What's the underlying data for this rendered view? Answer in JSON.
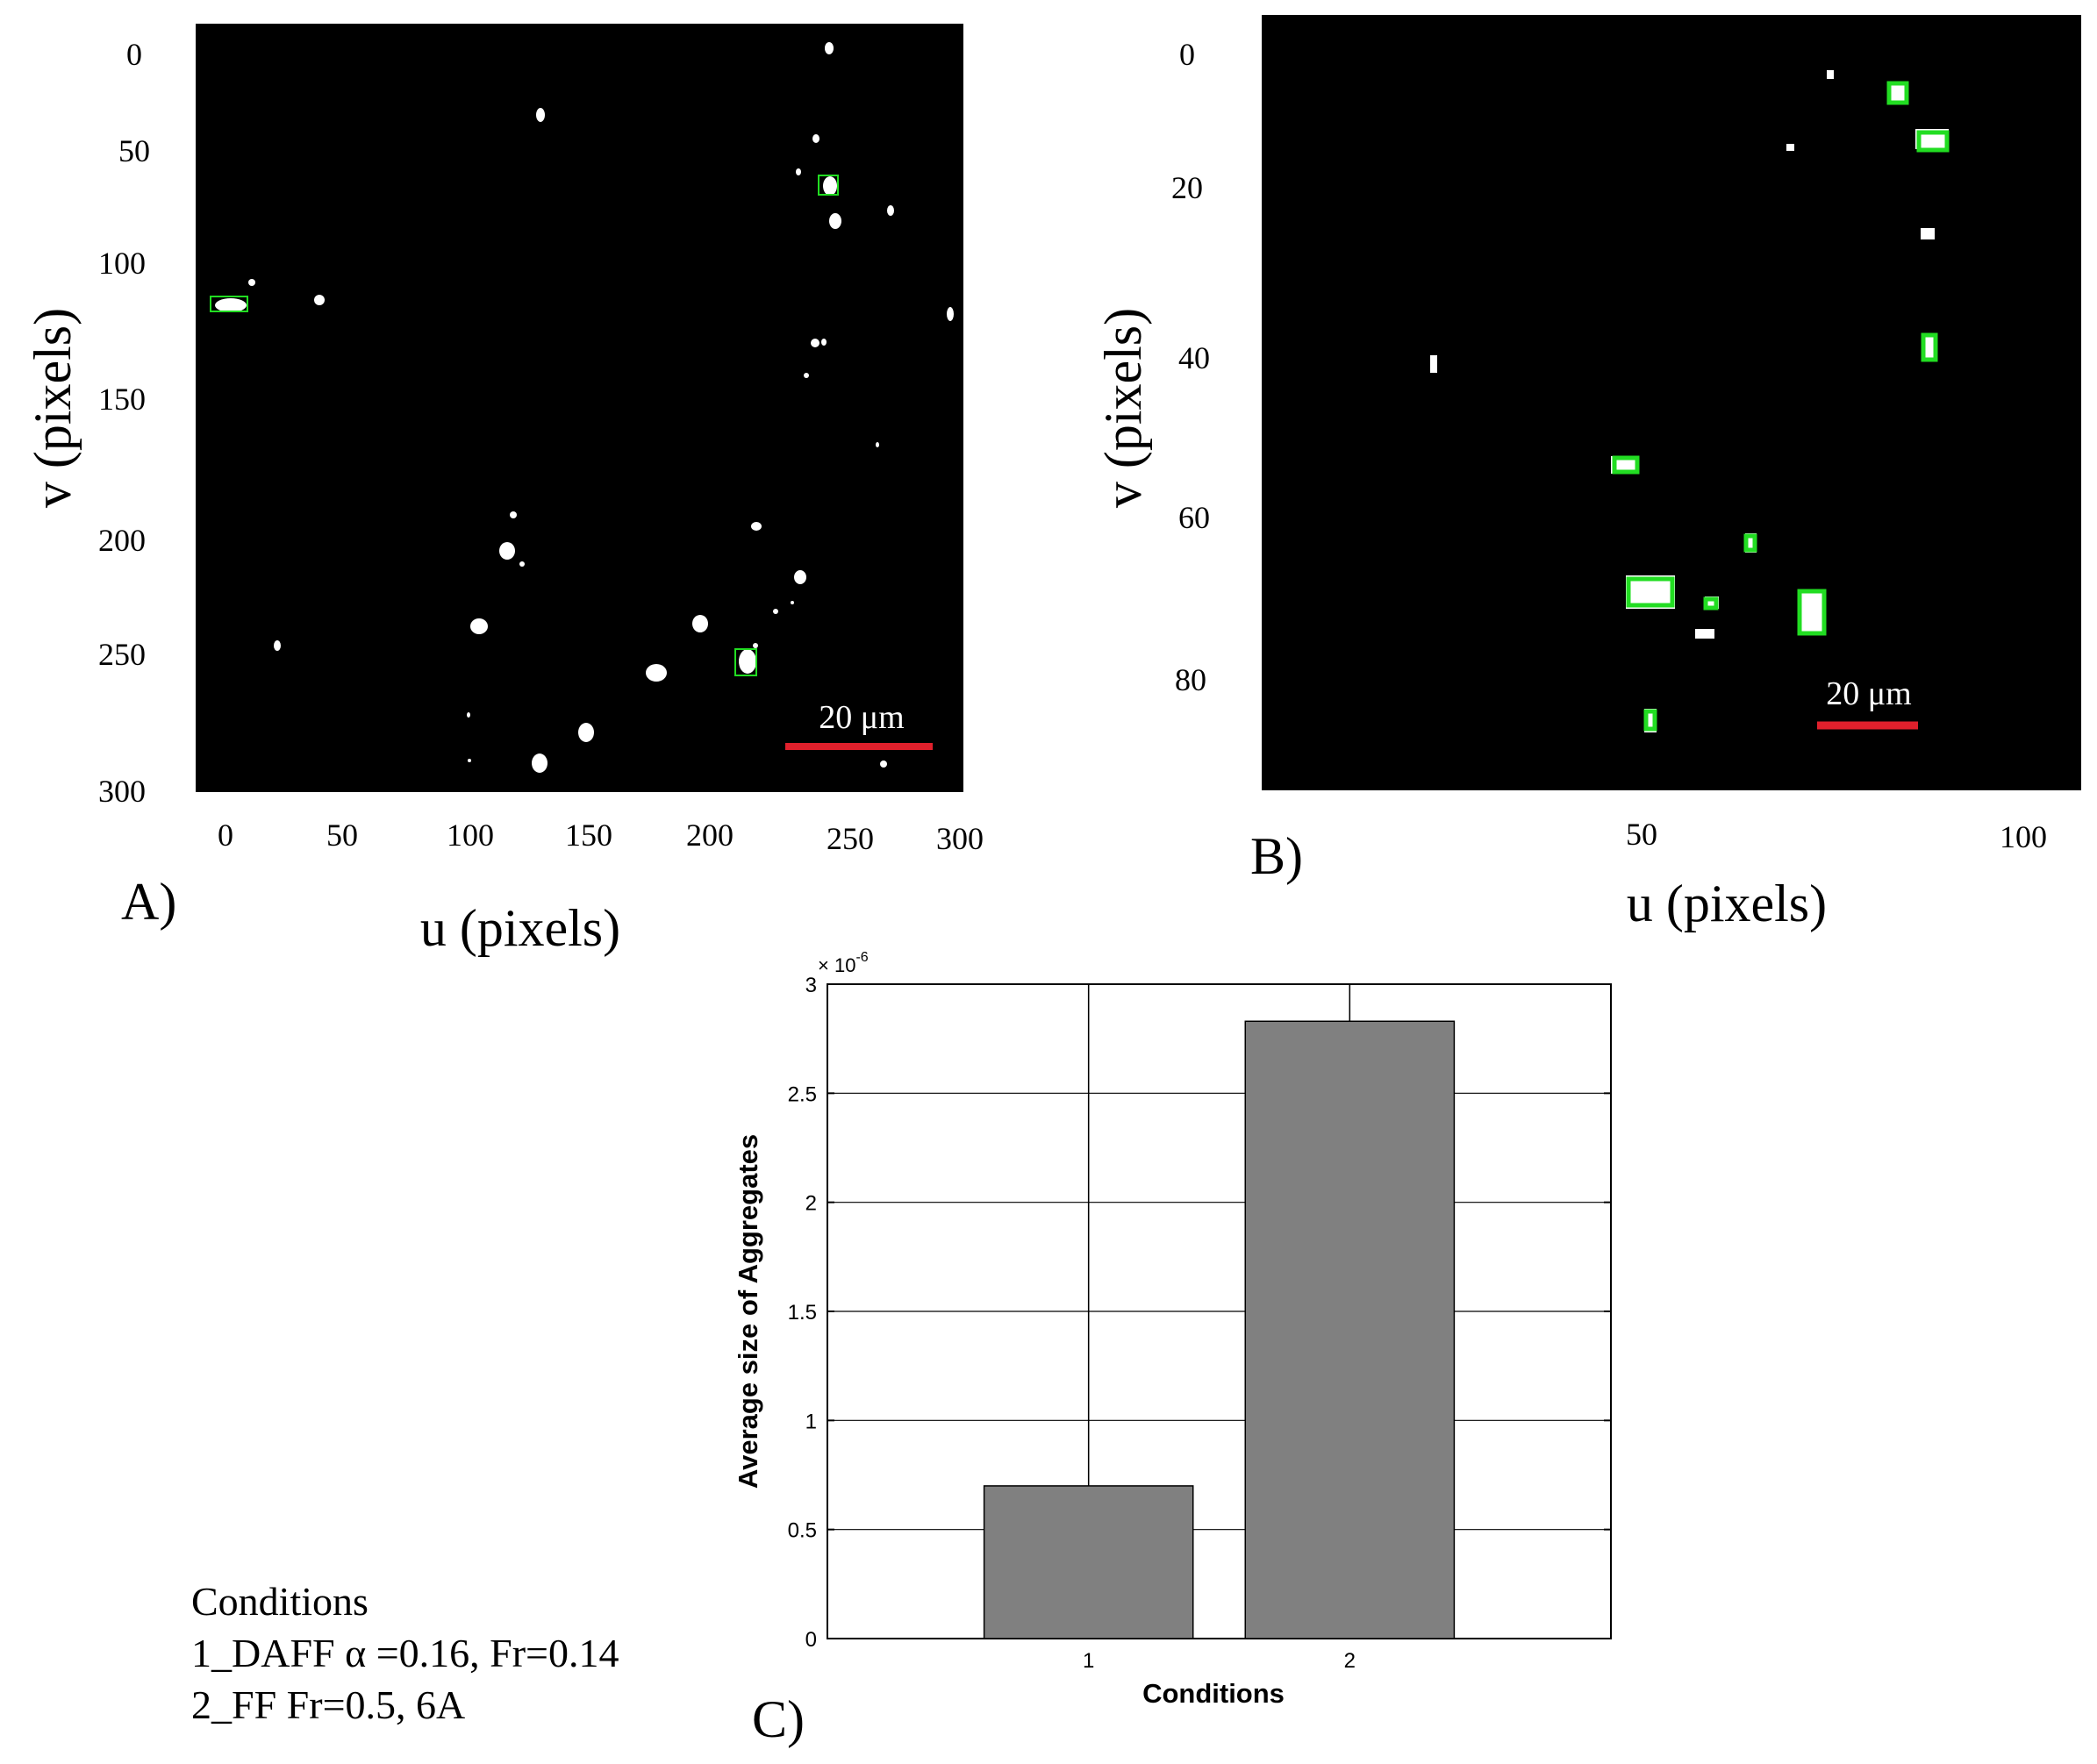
{
  "panels": {
    "a": {
      "letter": "A)",
      "xlabel": "u (pixels)",
      "ylabel": "v (pixels)",
      "xticks": [
        "0",
        "50",
        "100",
        "150",
        "200",
        "250",
        "300"
      ],
      "yticks": [
        "0",
        "50",
        "100",
        "150",
        "200",
        "250",
        "300"
      ],
      "scale_bar": "20 μm"
    },
    "b": {
      "letter": "B)",
      "xlabel": "u (pixels)",
      "ylabel": "v (pixels)",
      "xticks": [
        "50",
        "100"
      ],
      "yticks": [
        "0",
        "20",
        "40",
        "60",
        "80"
      ],
      "scale_bar": "20 μm"
    },
    "c": {
      "letter": "C)"
    }
  },
  "legend": {
    "title": "Conditions",
    "lines": [
      "1_DAFF α =0.16, Fr=0.14",
      "2_FF Fr=0.5, 6A"
    ]
  },
  "colors": {
    "bar": "#808080",
    "scale_bar": "#e0202c",
    "detection_box": "#22dd22",
    "image_bg": "#000000"
  },
  "chart_data": {
    "type": "bar",
    "categories": [
      "1",
      "2"
    ],
    "values": [
      0.7,
      2.83
    ],
    "errors_upper": [
      3.0,
      3.0
    ],
    "xlabel": "Conditions",
    "ylabel": "Average size of Aggregates",
    "yticks": [
      "0",
      "0.5",
      "1",
      "1.5",
      "2",
      "2.5",
      "3"
    ],
    "ylim": [
      0,
      3
    ],
    "y_exponent": "× 10",
    "y_exponent_power": "-6",
    "grid": true
  }
}
